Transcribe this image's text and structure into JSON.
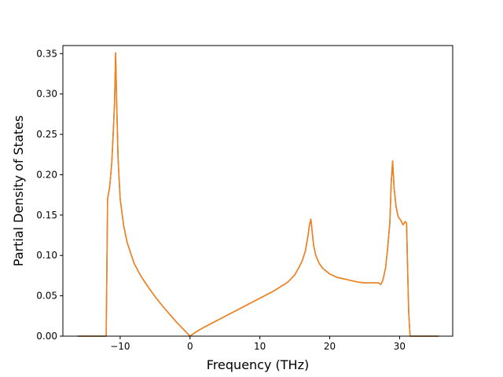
{
  "chart_data": {
    "type": "line",
    "title": "",
    "xlabel": "Frequency (THz)",
    "ylabel": "Partial Density of States",
    "xlim": [
      -18.2,
      37.6
    ],
    "ylim": [
      0,
      0.36
    ],
    "xticks": [
      -10,
      0,
      10,
      20,
      30
    ],
    "xtick_labels": [
      "−10",
      "0",
      "10",
      "20",
      "30"
    ],
    "yticks": [
      0,
      0.05,
      0.1,
      0.15,
      0.2,
      0.25,
      0.3,
      0.35
    ],
    "ytick_labels": [
      "0.00",
      "0.05",
      "0.10",
      "0.15",
      "0.20",
      "0.25",
      "0.30",
      "0.35"
    ],
    "grid": false,
    "legend": "none",
    "series": [
      {
        "color": "#1f77b4",
        "x": [
          -16.0,
          -12.0,
          -11.8,
          -11.5,
          -11.2,
          -11.0,
          -10.8,
          -10.65,
          -10.5,
          -10.3,
          -10.0,
          -9.5,
          -9.0,
          -8.0,
          -7.0,
          -6.0,
          -5.0,
          -4.0,
          -3.0,
          -2.0,
          -1.0,
          0.0,
          0.5,
          1.0,
          2.0,
          4.0,
          6.0,
          8.0,
          10.0,
          12.0,
          14.0,
          15.0,
          16.0,
          16.5,
          16.9,
          17.1,
          17.3,
          17.5,
          17.7,
          18.0,
          18.5,
          19.0,
          20.0,
          21.0,
          22.0,
          23.0,
          24.0,
          25.0,
          26.0,
          27.0,
          27.3,
          27.6,
          28.0,
          28.3,
          28.6,
          28.8,
          29.0,
          29.2,
          29.5,
          29.8,
          30.2,
          30.5,
          30.8,
          31.0,
          31.1,
          31.3,
          31.5,
          33.0,
          35.5
        ],
        "y": [
          0.0,
          0.0,
          0.17,
          0.185,
          0.215,
          0.25,
          0.29,
          0.351,
          0.29,
          0.22,
          0.17,
          0.137,
          0.116,
          0.09,
          0.074,
          0.061,
          0.049,
          0.038,
          0.028,
          0.018,
          0.009,
          0.0,
          0.003,
          0.006,
          0.011,
          0.02,
          0.029,
          0.038,
          0.047,
          0.056,
          0.067,
          0.076,
          0.092,
          0.105,
          0.125,
          0.138,
          0.145,
          0.128,
          0.112,
          0.1,
          0.09,
          0.084,
          0.077,
          0.073,
          0.071,
          0.069,
          0.067,
          0.066,
          0.066,
          0.066,
          0.064,
          0.069,
          0.085,
          0.11,
          0.14,
          0.19,
          0.217,
          0.185,
          0.16,
          0.148,
          0.143,
          0.138,
          0.142,
          0.14,
          0.1,
          0.03,
          0.0,
          0.0,
          0.0
        ]
      },
      {
        "color": "#ff7f0e",
        "x": [
          -16.0,
          -12.0,
          -11.8,
          -11.5,
          -11.2,
          -11.0,
          -10.8,
          -10.65,
          -10.5,
          -10.3,
          -10.0,
          -9.5,
          -9.0,
          -8.0,
          -7.0,
          -6.0,
          -5.0,
          -4.0,
          -3.0,
          -2.0,
          -1.0,
          0.0,
          0.5,
          1.0,
          2.0,
          4.0,
          6.0,
          8.0,
          10.0,
          12.0,
          14.0,
          15.0,
          16.0,
          16.5,
          16.9,
          17.1,
          17.3,
          17.5,
          17.7,
          18.0,
          18.5,
          19.0,
          20.0,
          21.0,
          22.0,
          23.0,
          24.0,
          25.0,
          26.0,
          27.0,
          27.3,
          27.6,
          28.0,
          28.3,
          28.6,
          28.8,
          29.0,
          29.2,
          29.5,
          29.8,
          30.2,
          30.5,
          30.8,
          31.0,
          31.1,
          31.3,
          31.5,
          33.0,
          35.5
        ],
        "y": [
          0.0,
          0.0,
          0.17,
          0.185,
          0.215,
          0.25,
          0.29,
          0.351,
          0.29,
          0.22,
          0.17,
          0.137,
          0.116,
          0.09,
          0.074,
          0.061,
          0.049,
          0.038,
          0.028,
          0.018,
          0.009,
          0.0,
          0.003,
          0.006,
          0.011,
          0.02,
          0.029,
          0.038,
          0.047,
          0.056,
          0.067,
          0.076,
          0.092,
          0.105,
          0.125,
          0.138,
          0.145,
          0.128,
          0.112,
          0.1,
          0.09,
          0.084,
          0.077,
          0.073,
          0.071,
          0.069,
          0.067,
          0.066,
          0.066,
          0.066,
          0.064,
          0.069,
          0.085,
          0.11,
          0.14,
          0.19,
          0.217,
          0.185,
          0.16,
          0.148,
          0.143,
          0.138,
          0.142,
          0.14,
          0.1,
          0.03,
          0.0,
          0.0,
          0.0
        ]
      }
    ]
  }
}
